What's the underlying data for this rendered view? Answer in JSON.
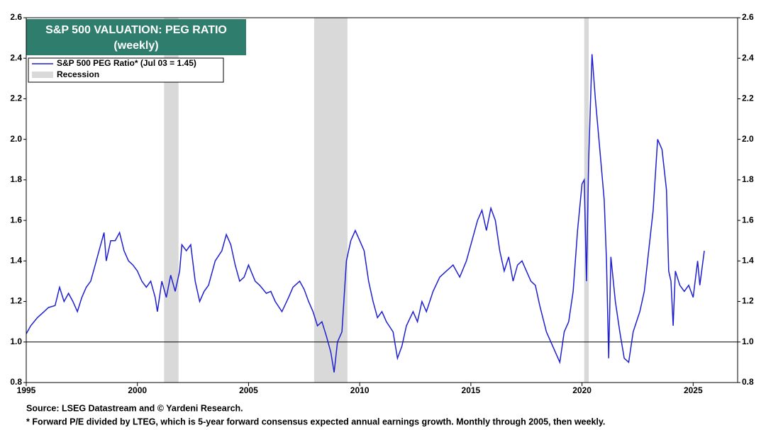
{
  "chart_data": {
    "type": "line",
    "title": "S&P 500 VALUATION: PEG RATIO",
    "subtitle": "(weekly)",
    "series": [
      {
        "name": "S&P 500 PEG Ratio* (Jul 03 = 1.45)",
        "color": "#1f1fd0",
        "x": [
          1995.0,
          1995.2,
          1995.5,
          1995.8,
          1996.0,
          1996.3,
          1996.5,
          1996.7,
          1996.9,
          1997.1,
          1997.3,
          1997.5,
          1997.7,
          1997.9,
          1998.1,
          1998.3,
          1998.5,
          1998.6,
          1998.8,
          1999.0,
          1999.2,
          1999.4,
          1999.6,
          1999.8,
          2000.0,
          2000.2,
          2000.4,
          2000.6,
          2000.8,
          2000.9,
          2001.1,
          2001.3,
          2001.5,
          2001.7,
          2001.9,
          2002.0,
          2002.2,
          2002.4,
          2002.6,
          2002.8,
          2003.0,
          2003.2,
          2003.5,
          2003.8,
          2004.0,
          2004.2,
          2004.4,
          2004.6,
          2004.8,
          2005.0,
          2005.3,
          2005.5,
          2005.8,
          2006.0,
          2006.2,
          2006.5,
          2006.8,
          2007.0,
          2007.3,
          2007.5,
          2007.7,
          2007.9,
          2008.1,
          2008.3,
          2008.5,
          2008.7,
          2008.85,
          2009.0,
          2009.2,
          2009.4,
          2009.6,
          2009.8,
          2010.0,
          2010.2,
          2010.4,
          2010.6,
          2010.8,
          2011.0,
          2011.2,
          2011.5,
          2011.7,
          2011.9,
          2012.1,
          2012.4,
          2012.6,
          2012.8,
          2013.0,
          2013.3,
          2013.6,
          2013.9,
          2014.2,
          2014.5,
          2014.8,
          2015.0,
          2015.3,
          2015.5,
          2015.7,
          2015.9,
          2016.1,
          2016.3,
          2016.5,
          2016.7,
          2016.9,
          2017.1,
          2017.3,
          2017.5,
          2017.7,
          2017.9,
          2018.1,
          2018.4,
          2018.6,
          2018.8,
          2019.0,
          2019.2,
          2019.4,
          2019.6,
          2019.8,
          2020.0,
          2020.1,
          2020.2,
          2020.3,
          2020.45,
          2020.6,
          2020.8,
          2021.0,
          2021.1,
          2021.2,
          2021.3,
          2021.5,
          2021.7,
          2021.9,
          2022.1,
          2022.3,
          2022.6,
          2022.8,
          2023.0,
          2023.2,
          2023.4,
          2023.6,
          2023.8,
          2023.9,
          2024.0,
          2024.1,
          2024.2,
          2024.4,
          2024.6,
          2024.8,
          2025.0,
          2025.2,
          2025.3,
          2025.5
        ],
        "values": [
          1.04,
          1.08,
          1.12,
          1.15,
          1.17,
          1.18,
          1.27,
          1.2,
          1.24,
          1.2,
          1.15,
          1.22,
          1.27,
          1.3,
          1.38,
          1.46,
          1.54,
          1.4,
          1.5,
          1.5,
          1.54,
          1.45,
          1.4,
          1.38,
          1.35,
          1.3,
          1.27,
          1.3,
          1.22,
          1.15,
          1.3,
          1.22,
          1.33,
          1.25,
          1.35,
          1.48,
          1.45,
          1.48,
          1.3,
          1.2,
          1.25,
          1.28,
          1.4,
          1.45,
          1.53,
          1.48,
          1.38,
          1.3,
          1.32,
          1.38,
          1.3,
          1.28,
          1.24,
          1.25,
          1.2,
          1.15,
          1.22,
          1.27,
          1.3,
          1.26,
          1.2,
          1.15,
          1.08,
          1.1,
          1.03,
          0.95,
          0.85,
          1.0,
          1.05,
          1.4,
          1.5,
          1.55,
          1.5,
          1.45,
          1.3,
          1.2,
          1.12,
          1.15,
          1.1,
          1.05,
          0.92,
          0.98,
          1.08,
          1.15,
          1.1,
          1.2,
          1.15,
          1.25,
          1.32,
          1.35,
          1.38,
          1.32,
          1.4,
          1.48,
          1.6,
          1.65,
          1.55,
          1.66,
          1.6,
          1.45,
          1.35,
          1.42,
          1.3,
          1.38,
          1.4,
          1.35,
          1.3,
          1.28,
          1.18,
          1.05,
          1.0,
          0.95,
          0.9,
          1.05,
          1.1,
          1.25,
          1.55,
          1.78,
          1.8,
          1.3,
          1.9,
          2.42,
          2.2,
          1.95,
          1.7,
          1.4,
          0.92,
          1.42,
          1.2,
          1.05,
          0.92,
          0.9,
          1.05,
          1.15,
          1.25,
          1.45,
          1.65,
          2.0,
          1.95,
          1.75,
          1.35,
          1.3,
          1.08,
          1.35,
          1.28,
          1.25,
          1.28,
          1.22,
          1.4,
          1.28,
          1.45
        ]
      }
    ],
    "recession_name": "Recession",
    "recessions": [
      [
        2001.2,
        2001.85
      ],
      [
        2007.95,
        2009.45
      ],
      [
        2020.1,
        2020.3
      ]
    ],
    "reference_line": 1.0,
    "xlim": [
      1995,
      2027
    ],
    "xticks": [
      1995,
      2000,
      2005,
      2010,
      2015,
      2020,
      2025
    ],
    "ylim": [
      0.8,
      2.6
    ],
    "yticks": [
      0.8,
      {
        "value": 1.0,
        "label": "1.0"
      },
      1.2,
      1.4,
      1.6,
      1.8,
      {
        "value": 2.0,
        "label": "2.0"
      },
      2.2,
      2.4,
      2.6
    ],
    "notes": [
      "Source: LSEG Datastream and © Yardeni Research.",
      "* Forward P/E divided by LTEG, which is 5-year forward consensus expected annual earnings growth. Monthly through 2005, then weekly."
    ]
  }
}
